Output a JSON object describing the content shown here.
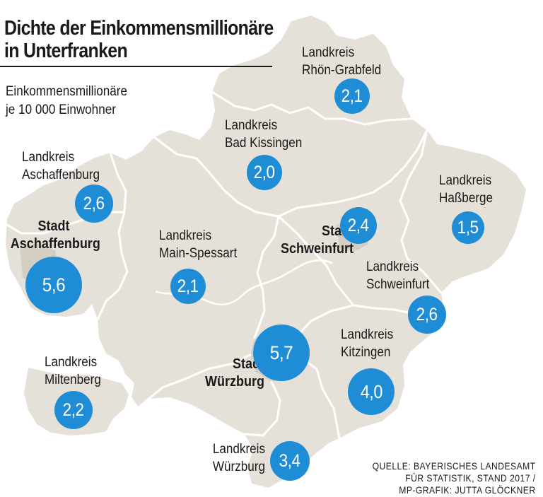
{
  "title": {
    "line1": "Dichte der Einkommensmillionäre",
    "line2": "in Unterfranken"
  },
  "subtitle": {
    "line1": "Einkommensmillionäre",
    "line2": "je 10 000 Einwohner"
  },
  "colors": {
    "land": "#e6e1d8",
    "border": "#ffffff",
    "city": "#d5cfc3",
    "bubble": "#1f8dd6",
    "bubble_text": "#ffffff"
  },
  "regions": [
    {
      "id": "rhoen-grabfeld",
      "label": [
        "Landkreis",
        "Rhön-Grabfeld"
      ],
      "value": "2,1",
      "bold": false
    },
    {
      "id": "bad-kissingen",
      "label": [
        "Landkreis",
        "Bad Kissingen"
      ],
      "value": "2,0",
      "bold": false
    },
    {
      "id": "aschaffenburg-lk",
      "label": [
        "Landkreis",
        "Aschaffenburg"
      ],
      "value": "2,6",
      "bold": false
    },
    {
      "id": "hassberge",
      "label": [
        "Landkreis",
        "Haßberge"
      ],
      "value": "1,5",
      "bold": false
    },
    {
      "id": "aschaffenburg-stadt",
      "label": [
        "Stadt",
        "Aschaffenburg"
      ],
      "value": "5,6",
      "bold": true
    },
    {
      "id": "main-spessart",
      "label": [
        "Landkreis",
        "Main-Spessart"
      ],
      "value": "2,1",
      "bold": false
    },
    {
      "id": "schweinfurt-stadt",
      "label": [
        "Stadt",
        "Schweinfurt"
      ],
      "value": "2,4",
      "bold": true
    },
    {
      "id": "schweinfurt-lk",
      "label": [
        "Landkreis",
        "Schweinfurt"
      ],
      "value": "2,6",
      "bold": false
    },
    {
      "id": "kitzingen",
      "label": [
        "Landkreis",
        "Kitzingen"
      ],
      "value": "4,0",
      "bold": false
    },
    {
      "id": "wuerzburg-stadt",
      "label": [
        "Stadt",
        "Würzburg"
      ],
      "value": "5,7",
      "bold": true
    },
    {
      "id": "miltenberg",
      "label": [
        "Landkreis",
        "Miltenberg"
      ],
      "value": "2,2",
      "bold": false
    },
    {
      "id": "wuerzburg-lk",
      "label": [
        "Landkreis",
        "Würzburg"
      ],
      "value": "3,4",
      "bold": false
    }
  ],
  "source": {
    "line1": "QUELLE: BAYERISCHES LANDESAMT",
    "line2": "FÜR STATISTIK, STAND 2017  /",
    "line3": "MP-GRAFIK: JUTTA GLÖCKNER"
  }
}
